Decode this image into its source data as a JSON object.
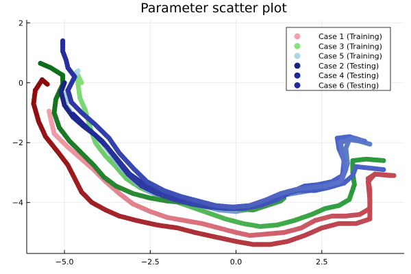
{
  "chart_data": {
    "type": "scatter",
    "title": "Parameter scatter plot",
    "xlabel": "",
    "ylabel": "",
    "xlim": [
      -6.1,
      4.9
    ],
    "ylim": [
      -5.7,
      2.1
    ],
    "xticks": [
      -5.0,
      -2.5,
      0.0,
      2.5
    ],
    "xtick_labels": [
      "−5.0",
      "−2.5",
      "0.0",
      "2.5"
    ],
    "yticks": [
      2,
      0,
      -2,
      -4
    ],
    "ytick_labels": [
      "2",
      "0",
      "−2",
      "−4"
    ],
    "grid": true,
    "legend_position": "top-right",
    "series": [
      {
        "name": "Case 1 (Training)",
        "color": "#f2a0ab",
        "color_end": "#c24a55",
        "points": [
          [
            -5.45,
            -0.95
          ],
          [
            -5.3,
            -1.7
          ],
          [
            -4.9,
            -2.15
          ],
          [
            -4.5,
            -2.55
          ],
          [
            -4.15,
            -2.9
          ],
          [
            -3.8,
            -3.3
          ],
          [
            -3.4,
            -3.7
          ],
          [
            -3.0,
            -4.05
          ],
          [
            -2.5,
            -4.3
          ],
          [
            -2.0,
            -4.5
          ],
          [
            -1.5,
            -4.6
          ],
          [
            -1.0,
            -4.7
          ],
          [
            -0.5,
            -4.85
          ],
          [
            0.0,
            -5.0
          ],
          [
            0.4,
            -5.1
          ],
          [
            0.9,
            -5.05
          ],
          [
            1.4,
            -5.0
          ],
          [
            1.9,
            -4.85
          ],
          [
            2.3,
            -4.6
          ],
          [
            2.8,
            -4.45
          ],
          [
            3.2,
            -4.45
          ],
          [
            3.6,
            -4.4
          ],
          [
            3.9,
            -4.2
          ],
          [
            3.9,
            -3.6
          ],
          [
            3.85,
            -3.2
          ],
          [
            4.05,
            -3.05
          ],
          [
            4.6,
            -3.1
          ]
        ]
      },
      {
        "name": "Case 3 (Training)",
        "color": "#86e07d",
        "color_end": "#2c9a3c",
        "points": [
          [
            -4.5,
            0.0
          ],
          [
            -4.65,
            0.35
          ],
          [
            -4.55,
            -0.5
          ],
          [
            -4.4,
            -0.9
          ],
          [
            -4.25,
            -1.5
          ],
          [
            -4.1,
            -2.0
          ],
          [
            -3.8,
            -2.45
          ],
          [
            -3.5,
            -2.8
          ],
          [
            -3.2,
            -3.2
          ],
          [
            -2.8,
            -3.5
          ],
          [
            -2.3,
            -3.75
          ],
          [
            -1.8,
            -3.95
          ],
          [
            -1.3,
            -4.15
          ],
          [
            -0.8,
            -4.35
          ],
          [
            -0.3,
            -4.55
          ],
          [
            0.2,
            -4.7
          ],
          [
            0.7,
            -4.8
          ],
          [
            1.2,
            -4.75
          ],
          [
            1.7,
            -4.6
          ],
          [
            2.2,
            -4.4
          ],
          [
            2.6,
            -4.2
          ],
          [
            3.0,
            -4.1
          ],
          [
            3.3,
            -3.9
          ],
          [
            3.45,
            -3.4
          ],
          [
            3.4,
            -3.0
          ],
          [
            3.4,
            -2.6
          ],
          [
            3.8,
            -2.55
          ],
          [
            4.3,
            -2.6
          ]
        ]
      },
      {
        "name": "Case 5 (Training)",
        "color": "#acd6e2",
        "color_end": "#5a7fc0",
        "points": [
          [
            -4.6,
            0.4
          ],
          [
            -4.75,
            0.1
          ],
          [
            -4.95,
            -0.35
          ],
          [
            -4.95,
            -0.75
          ],
          [
            -4.8,
            -1.0
          ],
          [
            -4.55,
            -1.3
          ],
          [
            -4.25,
            -1.6
          ],
          [
            -3.9,
            -2.0
          ],
          [
            -3.6,
            -2.45
          ],
          [
            -3.3,
            -2.9
          ],
          [
            -2.9,
            -3.35
          ],
          [
            -2.5,
            -3.65
          ],
          [
            -2.0,
            -3.85
          ],
          [
            -1.5,
            -4.0
          ],
          [
            -1.0,
            -4.1
          ],
          [
            -0.5,
            -4.25
          ],
          [
            0.0,
            -4.3
          ],
          [
            0.5,
            -4.2
          ],
          [
            1.0,
            -4.05
          ],
          [
            1.4,
            -3.75
          ],
          [
            1.9,
            -3.65
          ],
          [
            2.4,
            -3.55
          ],
          [
            2.8,
            -3.4
          ],
          [
            3.1,
            -3.2
          ],
          [
            3.25,
            -2.7
          ],
          [
            3.2,
            -2.2
          ],
          [
            3.3,
            -1.9
          ],
          [
            3.6,
            -1.95
          ],
          [
            3.9,
            -2.05
          ]
        ]
      },
      {
        "name": "Case 2 (Testing)",
        "color": "#1a237e",
        "color_end": "#4a66c8",
        "points": [
          [
            -5.0,
            0.0
          ],
          [
            -5.1,
            -0.3
          ],
          [
            -5.0,
            -0.75
          ],
          [
            -4.75,
            -1.15
          ],
          [
            -4.45,
            -1.45
          ],
          [
            -4.1,
            -1.75
          ],
          [
            -3.75,
            -2.15
          ],
          [
            -3.45,
            -2.6
          ],
          [
            -3.15,
            -3.05
          ],
          [
            -2.75,
            -3.45
          ],
          [
            -2.3,
            -3.7
          ],
          [
            -1.8,
            -3.9
          ],
          [
            -1.3,
            -4.05
          ],
          [
            -0.8,
            -4.15
          ],
          [
            -0.3,
            -4.2
          ],
          [
            0.2,
            -4.2
          ],
          [
            0.7,
            -4.1
          ],
          [
            1.2,
            -3.9
          ],
          [
            1.6,
            -3.65
          ],
          [
            2.0,
            -3.45
          ],
          [
            2.4,
            -3.4
          ],
          [
            2.8,
            -3.3
          ],
          [
            3.1,
            -3.1
          ],
          [
            3.15,
            -2.6
          ],
          [
            3.0,
            -2.2
          ],
          [
            2.95,
            -1.85
          ],
          [
            3.3,
            -1.8
          ],
          [
            3.6,
            -1.9
          ]
        ]
      },
      {
        "name": "Case 4 (Testing)",
        "color": "#1c2690",
        "color_end": "#4a62c4",
        "points": [
          [
            -4.75,
            -1.05
          ],
          [
            -4.35,
            -1.5
          ],
          [
            -3.9,
            -1.95
          ],
          [
            -3.5,
            -2.5
          ],
          [
            -3.1,
            -3.05
          ],
          [
            -2.6,
            -3.45
          ],
          [
            -2.1,
            -3.7
          ],
          [
            -1.6,
            -3.9
          ],
          [
            -1.1,
            -4.05
          ],
          [
            -0.6,
            -4.15
          ],
          [
            -0.1,
            -4.2
          ],
          [
            0.4,
            -4.15
          ],
          [
            0.9,
            -4.0
          ],
          [
            1.3,
            -3.75
          ],
          [
            1.8,
            -3.6
          ],
          [
            2.3,
            -3.6
          ],
          [
            2.7,
            -3.5
          ],
          [
            3.15,
            -3.35
          ],
          [
            3.4,
            -3.1
          ],
          [
            3.5,
            -2.8
          ],
          [
            3.9,
            -2.85
          ],
          [
            4.3,
            -2.9
          ]
        ]
      },
      {
        "name": "Case 6 (Testing)",
        "color": "#222a9c",
        "color_end": "#5b73cc",
        "points": [
          [
            -5.05,
            1.4
          ],
          [
            -5.05,
            1.05
          ],
          [
            -4.95,
            0.75
          ],
          [
            -4.9,
            0.5
          ],
          [
            -4.7,
            0.2
          ],
          [
            -4.9,
            -0.25
          ],
          [
            -4.8,
            -0.65
          ],
          [
            -4.5,
            -1.0
          ],
          [
            -4.1,
            -1.4
          ],
          [
            -3.7,
            -1.85
          ],
          [
            -3.4,
            -2.35
          ],
          [
            -3.0,
            -2.85
          ],
          [
            -2.6,
            -3.3
          ],
          [
            -2.1,
            -3.6
          ],
          [
            -1.6,
            -3.8
          ],
          [
            -1.1,
            -3.95
          ],
          [
            -0.6,
            -4.1
          ],
          [
            -0.1,
            -4.15
          ],
          [
            0.4,
            -4.1
          ],
          [
            0.9,
            -3.9
          ],
          [
            1.3,
            -3.7
          ],
          [
            1.8,
            -3.55
          ],
          [
            2.2,
            -3.5
          ],
          [
            2.6,
            -3.45
          ],
          [
            3.05,
            -3.3
          ],
          [
            3.2,
            -2.9
          ],
          [
            3.1,
            -2.4
          ],
          [
            3.05,
            -2.0
          ],
          [
            3.4,
            -1.85
          ],
          [
            3.75,
            -1.95
          ]
        ]
      },
      {
        "name": "",
        "color": "#8b0a0a",
        "color_end": "#c24a55",
        "points": [
          [
            -5.5,
            -0.05
          ],
          [
            -5.65,
            0.1
          ],
          [
            -5.85,
            -0.25
          ],
          [
            -5.9,
            -0.7
          ],
          [
            -5.75,
            -1.3
          ],
          [
            -5.55,
            -1.8
          ],
          [
            -5.2,
            -2.3
          ],
          [
            -4.9,
            -2.75
          ],
          [
            -4.7,
            -3.2
          ],
          [
            -4.5,
            -3.65
          ],
          [
            -4.2,
            -4.0
          ],
          [
            -3.8,
            -4.25
          ],
          [
            -3.4,
            -4.45
          ],
          [
            -2.9,
            -4.6
          ],
          [
            -2.3,
            -4.75
          ],
          [
            -1.7,
            -4.85
          ],
          [
            -1.2,
            -5.0
          ],
          [
            -0.6,
            -5.15
          ],
          [
            0.0,
            -5.3
          ],
          [
            0.5,
            -5.4
          ],
          [
            1.0,
            -5.4
          ],
          [
            1.5,
            -5.3
          ],
          [
            2.0,
            -5.1
          ],
          [
            2.5,
            -4.85
          ],
          [
            3.0,
            -4.7
          ],
          [
            3.5,
            -4.7
          ],
          [
            3.9,
            -4.55
          ],
          [
            3.9,
            -3.9
          ],
          [
            3.85,
            -3.3
          ],
          [
            4.05,
            -3.05
          ],
          [
            4.5,
            -3.1
          ]
        ]
      },
      {
        "name": "",
        "color": "#0c6b18",
        "color_end": "#3e9a46",
        "points": [
          [
            -5.7,
            0.65
          ],
          [
            -5.4,
            0.5
          ],
          [
            -5.05,
            0.25
          ],
          [
            -5.05,
            -0.05
          ],
          [
            -5.25,
            -0.55
          ],
          [
            -5.3,
            -1.0
          ],
          [
            -5.15,
            -1.5
          ],
          [
            -4.85,
            -1.95
          ],
          [
            -4.5,
            -2.35
          ],
          [
            -4.15,
            -2.75
          ],
          [
            -3.85,
            -3.15
          ],
          [
            -3.5,
            -3.45
          ],
          [
            -3.0,
            -3.7
          ],
          [
            -2.5,
            -3.85
          ],
          [
            -2.0,
            -3.95
          ],
          [
            -1.5,
            -4.0
          ],
          [
            -1.0,
            -4.1
          ],
          [
            -0.5,
            -4.15
          ],
          [
            0.0,
            -4.2
          ],
          [
            0.5,
            -4.25
          ],
          [
            0.9,
            -4.1
          ],
          [
            1.3,
            -3.95
          ],
          [
            1.4,
            -3.85
          ]
        ]
      }
    ]
  }
}
